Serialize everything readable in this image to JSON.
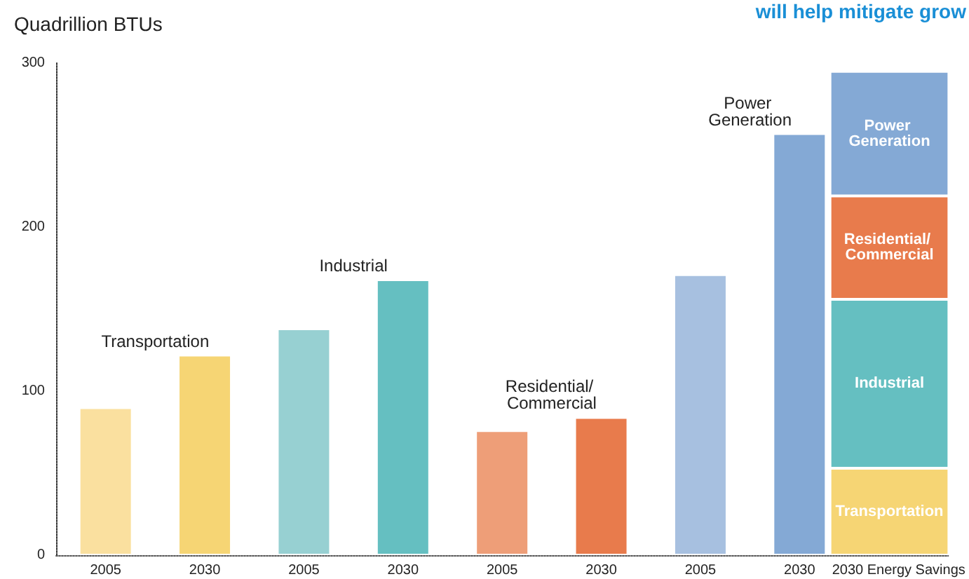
{
  "chart_data": {
    "type": "bar",
    "stacked": true,
    "ylabel": "Quadrillion BTUs",
    "annotations": [
      "will help mitigate grow"
    ],
    "categories": [
      "2005",
      "2030",
      "2005",
      "2030",
      "2005",
      "2030",
      "2005",
      "2030",
      "2030 Energy Savings"
    ],
    "series": [
      {
        "name": "Transportation",
        "color": "#f6d574",
        "colors": [
          "#fae09f",
          "#f6d574",
          null,
          null,
          null,
          null,
          null,
          null,
          null
        ],
        "values": [
          90,
          122,
          null,
          null,
          null,
          null,
          null,
          null,
          53
        ]
      },
      {
        "name": "Industrial",
        "color": "#65bfc1",
        "colors": [
          null,
          null,
          "#97d0d2",
          "#65bfc1",
          null,
          null,
          null,
          null,
          null
        ],
        "values": [
          null,
          null,
          138,
          168,
          null,
          null,
          null,
          null,
          103
        ]
      },
      {
        "name": "Residential/ Commercial",
        "color": "#e87b4c",
        "colors": [
          null,
          null,
          null,
          null,
          "#ee9e78",
          "#e87b4c",
          null,
          null,
          null
        ],
        "values": [
          null,
          null,
          null,
          null,
          76,
          84,
          null,
          null,
          63
        ]
      },
      {
        "name": "Power Generation",
        "color": "#84a9d5",
        "colors": [
          null,
          null,
          null,
          null,
          null,
          null,
          "#a7c0e0",
          "#84a9d5",
          null
        ],
        "values": [
          null,
          null,
          null,
          null,
          null,
          null,
          171,
          257,
          76
        ]
      }
    ],
    "ylim": [
      0,
      300
    ],
    "yticks": [
      0,
      100,
      200,
      300
    ],
    "grid": false,
    "legend": false
  }
}
